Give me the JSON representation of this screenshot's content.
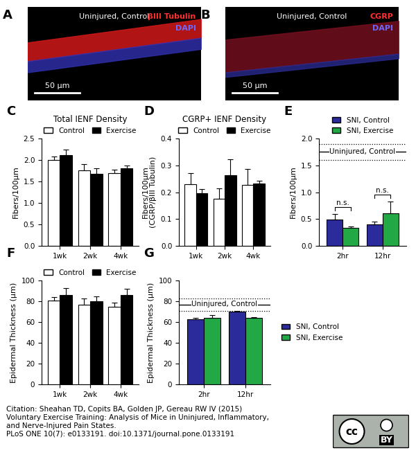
{
  "images": [
    {
      "panel": "A",
      "title": "Uninjured, Control",
      "scale_bar": "50 μm",
      "stains": [
        {
          "text": "βIII Tubulin",
          "color": "#ff3030"
        },
        {
          "text": "DAPI",
          "color": "#6a6aff"
        }
      ]
    },
    {
      "panel": "B",
      "title": "Uninjured, Control",
      "scale_bar": "50 μm",
      "stains": [
        {
          "text": "CGRP",
          "color": "#ff3030"
        },
        {
          "text": "DAPI",
          "color": "#6a6aff"
        }
      ]
    }
  ],
  "chart_data": [
    {
      "panel": "C",
      "type": "bar",
      "title": "Total IENF Density",
      "y_label": "Fibers/100μm",
      "categories": [
        "1wk",
        "2wk",
        "4wk"
      ],
      "series": [
        {
          "name": "Control",
          "color": "#ffffff",
          "values": [
            2.0,
            1.76,
            1.7
          ],
          "errors": [
            0.08,
            0.15,
            0.07
          ]
        },
        {
          "name": "Exercise",
          "color": "#000000",
          "values": [
            2.12,
            1.68,
            1.8
          ],
          "errors": [
            0.12,
            0.13,
            0.07
          ]
        }
      ],
      "ylim": [
        0,
        2.5
      ],
      "yticks": [
        {
          "value": 0,
          "label": "0.0"
        },
        {
          "value": 0.5,
          "label": "0.5"
        },
        {
          "value": 1,
          "label": "1.0"
        },
        {
          "value": 1.5,
          "label": "1.5"
        },
        {
          "value": 2,
          "label": "2.0"
        },
        {
          "value": 2.5,
          "label": "2.5"
        }
      ],
      "legend": "top"
    },
    {
      "panel": "D",
      "type": "bar",
      "title": "CGRP+ IENF Density",
      "y_label": "Fibers/100μm\n(CGRP/βIII Tubulin)",
      "categories": [
        "1wk",
        "2wk",
        "4wk"
      ],
      "series": [
        {
          "name": "Control",
          "color": "#ffffff",
          "values": [
            0.23,
            0.175,
            0.227
          ],
          "errors": [
            0.04,
            0.04,
            0.06
          ]
        },
        {
          "name": "Exercise",
          "color": "#000000",
          "values": [
            0.195,
            0.262,
            0.233
          ],
          "errors": [
            0.017,
            0.06,
            0.01
          ]
        }
      ],
      "ylim": [
        0,
        0.4
      ],
      "yticks": [
        {
          "value": 0,
          "label": "0.0"
        },
        0.1,
        0.2,
        0.3,
        0.4
      ],
      "legend": "top"
    },
    {
      "panel": "E",
      "type": "bar",
      "y_label": "Fibers/100μm",
      "categories": [
        "2hr",
        "12hr"
      ],
      "series": [
        {
          "name": "SNI, Control",
          "color": "#2b2b9b",
          "values": [
            0.49,
            0.4
          ],
          "errors": [
            0.11,
            0.05
          ]
        },
        {
          "name": "SNI, Exercise",
          "color": "#22a845",
          "values": [
            0.34,
            0.61
          ],
          "errors": [
            0.02,
            0.22
          ]
        }
      ],
      "reference": {
        "label": "Uninjured, Control",
        "value": 1.75,
        "error": 0.15
      },
      "annotations": [
        {
          "text": "n.s.",
          "category": "2hr"
        },
        {
          "text": "n.s.",
          "category": "12hr"
        }
      ],
      "ylim": [
        0,
        2
      ],
      "yticks": [
        {
          "value": 0,
          "label": "0.0"
        },
        {
          "value": 0.5,
          "label": "0.5"
        },
        {
          "value": 1,
          "label": "1.0"
        },
        {
          "value": 1.5,
          "label": "1.5"
        },
        {
          "value": 2,
          "label": "2.0"
        }
      ],
      "legend": "top"
    },
    {
      "panel": "F",
      "type": "bar",
      "y_label": "Epidermal Thickness (μm)",
      "categories": [
        "1wk",
        "2wk",
        "4wk"
      ],
      "series": [
        {
          "name": "Control",
          "color": "#ffffff",
          "values": [
            81,
            77,
            75
          ],
          "errors": [
            3,
            6,
            4
          ]
        },
        {
          "name": "Exercise",
          "color": "#000000",
          "values": [
            86,
            80,
            86
          ],
          "errors": [
            7,
            5,
            6
          ]
        }
      ],
      "ylim": [
        0,
        100
      ],
      "yticks": [
        0,
        20,
        40,
        60,
        80,
        100
      ],
      "legend": "top"
    },
    {
      "panel": "G",
      "type": "bar",
      "y_label": "Epidermal Thickness (μm)",
      "categories": [
        "2hr",
        "12hr"
      ],
      "series": [
        {
          "name": "SNI, Control",
          "color": "#2b2b9b",
          "values": [
            63,
            70
          ],
          "errors": [
            1,
            1
          ]
        },
        {
          "name": "SNI, Exercise",
          "color": "#22a845",
          "values": [
            64,
            64
          ],
          "errors": [
            2.5,
            1
          ]
        }
      ],
      "reference": {
        "label": "Uninjured, Control",
        "value": 77,
        "error": 6
      },
      "ylim": [
        0,
        100
      ],
      "yticks": [
        0,
        20,
        40,
        60,
        80,
        100
      ],
      "legend": "right"
    }
  ],
  "citation": [
    "Citation: Sheahan TD, Copits BA, Golden JP, Gereau RW IV (2015)",
    "Voluntary Exercise Training: Analysis of Mice in Uninjured, Inflammatory,",
    "and Nerve-Injured Pain States.",
    "PLoS ONE 10(7): e0133191. doi:10.1371/journal.pone.0133191"
  ],
  "license": {
    "logo": "cc",
    "text": "BY"
  }
}
